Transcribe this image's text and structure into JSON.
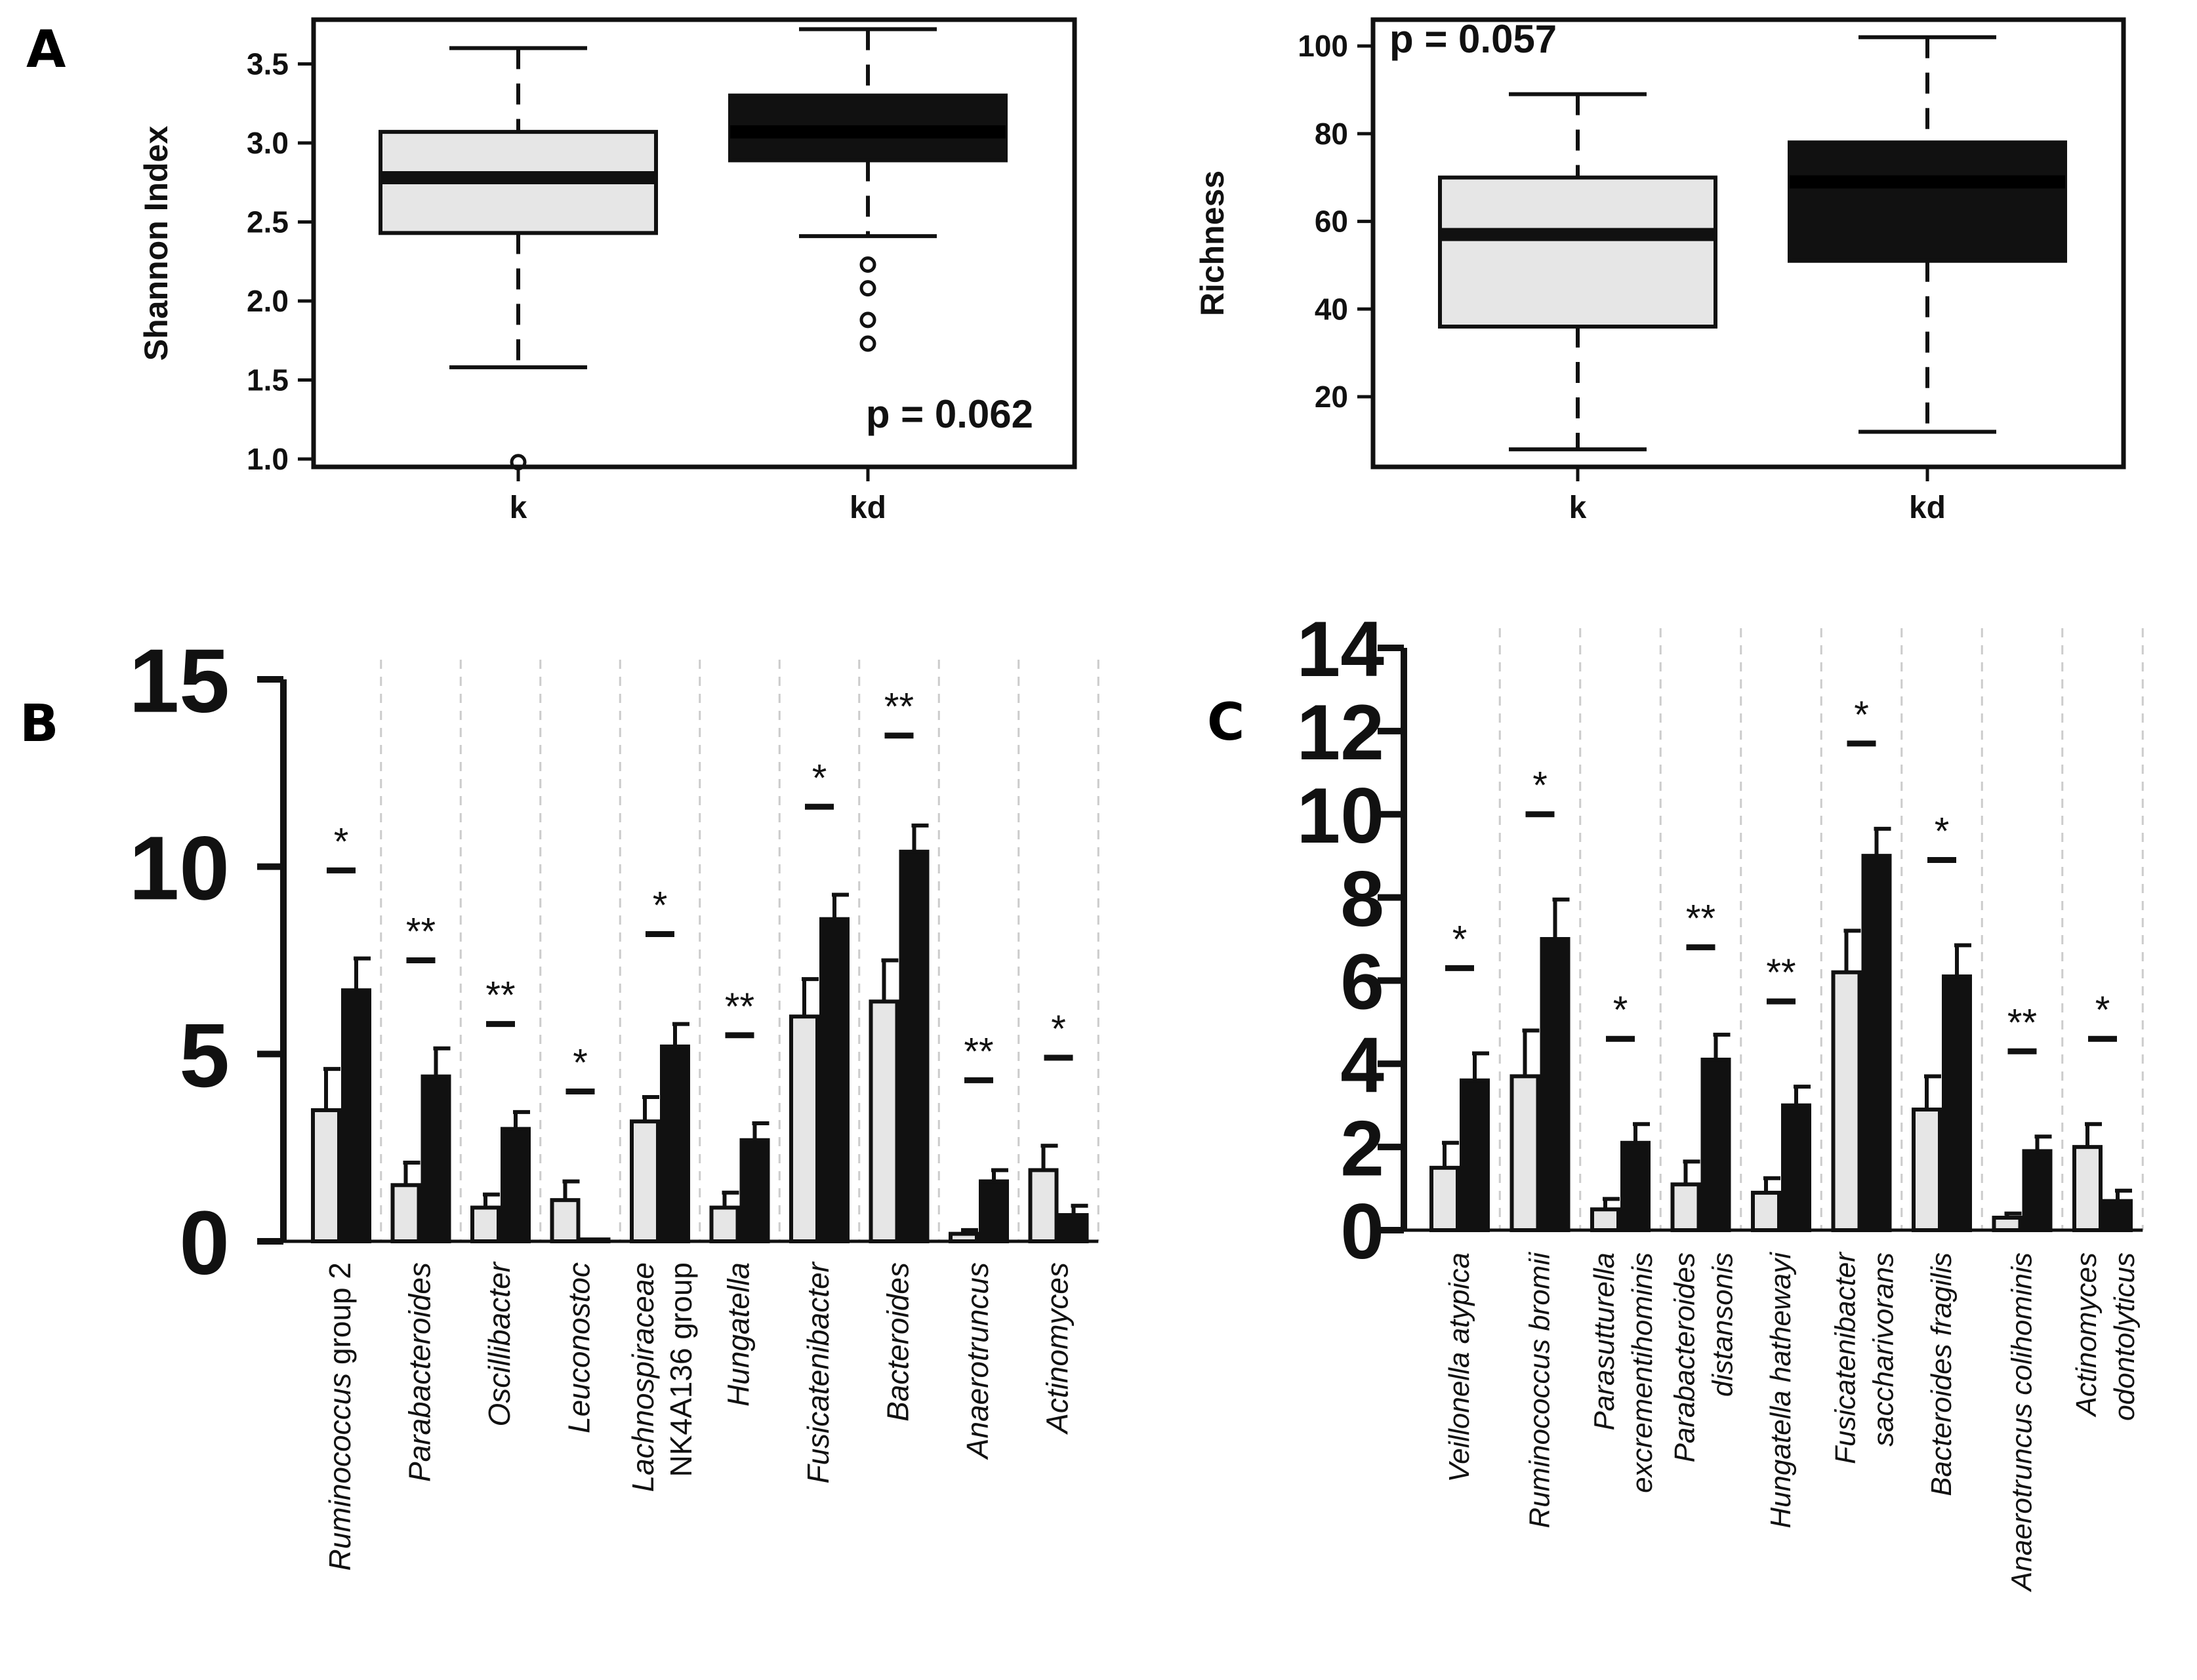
{
  "panels": {
    "a": "A",
    "b": "B",
    "c": "C"
  },
  "chart_data": [
    {
      "id": "A1",
      "type": "boxplot",
      "ylabel": "Shannon Index",
      "categories": [
        "k",
        "kd"
      ],
      "ylim": [
        0.95,
        3.78
      ],
      "yticks": [
        1.0,
        1.5,
        2.0,
        2.5,
        3.0,
        3.5
      ],
      "tick_labels": [
        "1.0",
        "1.5",
        "2.0",
        "2.5",
        "3.0",
        "3.5"
      ],
      "boxes": [
        {
          "name": "k",
          "min": 1.58,
          "q1": 2.43,
          "median": 2.78,
          "q3": 3.07,
          "max": 3.6,
          "outliers": [
            0.98
          ],
          "fill": "#e6e6e6"
        },
        {
          "name": "kd",
          "min": 2.41,
          "q1": 2.89,
          "median": 3.07,
          "q3": 3.3,
          "max": 3.72,
          "outliers": [
            2.23,
            2.08,
            1.88,
            1.73
          ],
          "fill": "#111111"
        }
      ],
      "annotation": "p = 0.062",
      "annotation_position": "bottom-right"
    },
    {
      "id": "A2",
      "type": "boxplot",
      "ylabel": "Richness",
      "categories": [
        "k",
        "kd"
      ],
      "ylim": [
        4,
        106
      ],
      "yticks": [
        20,
        40,
        60,
        80,
        100
      ],
      "tick_labels": [
        "20",
        "40",
        "60",
        "80",
        "100"
      ],
      "boxes": [
        {
          "name": "k",
          "min": 8,
          "q1": 36,
          "median": 57,
          "q3": 70,
          "max": 89,
          "outliers": [],
          "fill": "#e6e6e6"
        },
        {
          "name": "kd",
          "min": 12,
          "q1": 51,
          "median": 69,
          "q3": 78,
          "max": 102,
          "outliers": [],
          "fill": "#111111"
        }
      ],
      "annotation": "p = 0.057",
      "annotation_position": "top-left"
    },
    {
      "id": "B",
      "type": "bar",
      "ylim": [
        0,
        15
      ],
      "yticks": [
        0,
        5,
        10,
        15
      ],
      "tick_labels": [
        "0",
        "5",
        "10",
        "15"
      ],
      "series": [
        {
          "name": "k",
          "color": "#e6e6e6",
          "values": [
            3.5,
            1.5,
            0.9,
            1.1,
            3.2,
            0.9,
            6.0,
            6.4,
            0.2,
            1.9
          ],
          "errors": [
            1.1,
            0.6,
            0.35,
            0.5,
            0.65,
            0.4,
            1.0,
            1.1,
            0.1,
            0.65
          ]
        },
        {
          "name": "kd",
          "color": "#111111",
          "values": [
            6.7,
            4.4,
            3.0,
            0.05,
            5.2,
            2.7,
            8.6,
            10.4,
            1.6,
            0.7
          ],
          "errors": [
            0.85,
            0.75,
            0.45,
            0.0,
            0.6,
            0.45,
            0.65,
            0.7,
            0.3,
            0.25
          ]
        }
      ],
      "significance": [
        "*",
        "**",
        "**",
        "*",
        "*",
        "**",
        "*",
        "**",
        "**",
        "*"
      ],
      "sig_levels": [
        9.9,
        7.5,
        5.8,
        4.0,
        8.2,
        5.5,
        11.6,
        13.5,
        4.3,
        4.9
      ],
      "labels": [
        [
          {
            "text": "Ruminococcus",
            "italic": true
          },
          {
            "text": " group 2",
            "italic": false
          }
        ],
        [
          {
            "text": "Parabacteroides",
            "italic": true
          }
        ],
        [
          {
            "text": "Oscillibacter",
            "italic": true
          }
        ],
        [
          {
            "text": "Leuconostoc",
            "italic": true
          }
        ],
        [
          {
            "text": "Lachnospiraceae",
            "italic": true
          }
        ],
        [
          {
            "text": "Hungatella",
            "italic": true
          }
        ],
        [
          {
            "text": "Fusicatenibacter",
            "italic": true
          }
        ],
        [
          {
            "text": "Bacteroides",
            "italic": true
          }
        ],
        [
          {
            "text": "Anaerotruncus",
            "italic": true
          }
        ],
        [
          {
            "text": "Actinomyces",
            "italic": true
          }
        ]
      ],
      "labels_line2": [
        "",
        "",
        "",
        "",
        "NK4A136 group",
        "",
        "",
        "",
        "",
        ""
      ]
    },
    {
      "id": "C",
      "type": "bar",
      "ylim": [
        0,
        14
      ],
      "yticks": [
        0,
        2,
        4,
        6,
        8,
        10,
        12,
        14
      ],
      "tick_labels": [
        "0",
        "2",
        "4",
        "6",
        "8",
        "10",
        "12",
        "14"
      ],
      "series": [
        {
          "name": "k",
          "color": "#e6e6e6",
          "values": [
            1.5,
            3.7,
            0.5,
            1.1,
            0.9,
            6.2,
            2.9,
            0.3,
            2.0
          ],
          "errors": [
            0.6,
            1.1,
            0.25,
            0.55,
            0.35,
            1.0,
            0.8,
            0.1,
            0.55
          ]
        },
        {
          "name": "kd",
          "color": "#111111",
          "values": [
            3.6,
            7.0,
            2.1,
            4.1,
            3.0,
            9.0,
            6.1,
            1.9,
            0.7
          ],
          "errors": [
            0.65,
            0.95,
            0.45,
            0.6,
            0.45,
            0.65,
            0.75,
            0.35,
            0.25
          ]
        }
      ],
      "significance": [
        "*",
        "*",
        "*",
        "**",
        "**",
        "*",
        "*",
        "**",
        "*"
      ],
      "sig_levels": [
        6.3,
        10.0,
        4.6,
        6.8,
        5.5,
        11.7,
        8.9,
        4.3,
        4.6
      ],
      "labels": [
        [
          {
            "text": "Veillonella atypica",
            "italic": true
          }
        ],
        [
          {
            "text": "Ruminococcus bromii",
            "italic": true
          }
        ],
        [
          {
            "text": "Parasutturella",
            "italic": true
          }
        ],
        [
          {
            "text": "Parabacteroides",
            "italic": true
          }
        ],
        [
          {
            "text": "Hungatella hathewayi",
            "italic": true
          }
        ],
        [
          {
            "text": "Fusicatenibacter",
            "italic": true
          }
        ],
        [
          {
            "text": "Bacteroides fragilis",
            "italic": true
          }
        ],
        [
          {
            "text": "Anaerotruncus colihominis",
            "italic": true
          }
        ],
        [
          {
            "text": "Actinomyces",
            "italic": true
          }
        ]
      ],
      "labels_line2": [
        "",
        "",
        "excrementihominis",
        "distansonis",
        "",
        "saccharivorans",
        "",
        "",
        "odontolyticus"
      ]
    }
  ]
}
